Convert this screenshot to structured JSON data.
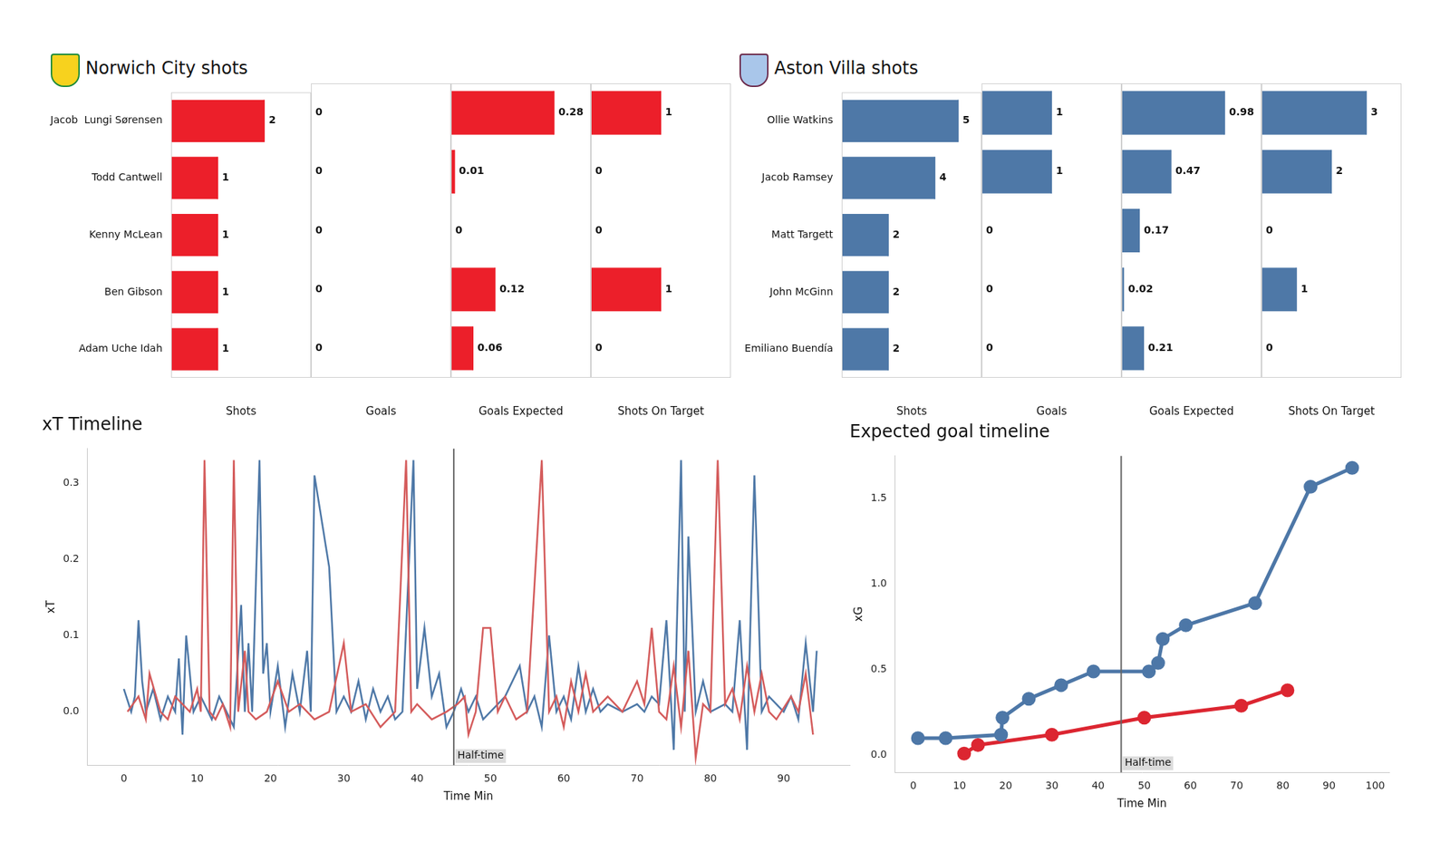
{
  "chart_data": [
    {
      "type": "bar",
      "orientation": "horizontal",
      "title": "Norwich City shots",
      "xlabel": "Shots",
      "categories": [
        "Jacob  Lungi Sørensen",
        "Todd Cantwell",
        "Kenny McLean",
        "Ben Gibson",
        "Adam Uche Idah"
      ],
      "values": [
        2,
        1,
        1,
        1,
        1
      ],
      "color": "#ec1f2a",
      "xlim": [
        0,
        3
      ],
      "data_labels": true,
      "tick_labels": "y",
      "grid": false
    },
    {
      "type": "bar",
      "orientation": "horizontal",
      "xlabel": "Goals",
      "categories": [
        "Jacob  Lungi Sørensen",
        "Todd Cantwell",
        "Kenny McLean",
        "Ben Gibson",
        "Adam Uche Idah"
      ],
      "values": [
        0,
        0,
        0,
        0,
        0
      ],
      "color": "#ec1f2a",
      "xlim": [
        0,
        1
      ],
      "data_labels": true,
      "tick_labels": false,
      "grid": false
    },
    {
      "type": "bar",
      "orientation": "horizontal",
      "xlabel": "Goals Expected",
      "categories": [
        "Jacob  Lungi Sørensen",
        "Todd Cantwell",
        "Kenny McLean",
        "Ben Gibson",
        "Adam Uche Idah"
      ],
      "values": [
        0.28,
        0.01,
        0,
        0.12,
        0.06
      ],
      "color": "#ec1f2a",
      "xlim": [
        0,
        0.38
      ],
      "data_labels": true,
      "tick_labels": false,
      "grid": false
    },
    {
      "type": "bar",
      "orientation": "horizontal",
      "xlabel": "Shots On Target",
      "categories": [
        "Jacob  Lungi Sørensen",
        "Todd Cantwell",
        "Kenny McLean",
        "Ben Gibson",
        "Adam Uche Idah"
      ],
      "values": [
        1,
        0,
        0,
        1,
        0
      ],
      "color": "#ec1f2a",
      "xlim": [
        0,
        2
      ],
      "data_labels": true,
      "tick_labels": false,
      "grid": false
    },
    {
      "type": "bar",
      "orientation": "horizontal",
      "title": "Aston Villa shots",
      "xlabel": "Shots",
      "categories": [
        "Ollie Watkins",
        "Jacob Ramsey",
        "Matt Targett",
        "John McGinn",
        "Emiliano Buendía"
      ],
      "values": [
        5,
        4,
        2,
        2,
        2
      ],
      "color": "#4e78a7",
      "xlim": [
        0,
        6
      ],
      "data_labels": true,
      "tick_labels": "y",
      "grid": false
    },
    {
      "type": "bar",
      "orientation": "horizontal",
      "xlabel": "Goals",
      "categories": [
        "Ollie Watkins",
        "Jacob Ramsey",
        "Matt Targett",
        "John McGinn",
        "Emiliano Buendía"
      ],
      "values": [
        1,
        1,
        0,
        0,
        0
      ],
      "color": "#4e78a7",
      "xlim": [
        0,
        2
      ],
      "data_labels": true,
      "tick_labels": false,
      "grid": false
    },
    {
      "type": "bar",
      "orientation": "horizontal",
      "xlabel": "Goals Expected",
      "categories": [
        "Ollie Watkins",
        "Jacob Ramsey",
        "Matt Targett",
        "John McGinn",
        "Emiliano Buendía"
      ],
      "values": [
        0.98,
        0.47,
        0.17,
        0.02,
        0.21
      ],
      "color": "#4e78a7",
      "xlim": [
        0,
        1.33
      ],
      "data_labels": true,
      "tick_labels": false,
      "grid": false
    },
    {
      "type": "bar",
      "orientation": "horizontal",
      "xlabel": "Shots On Target",
      "categories": [
        "Ollie Watkins",
        "Jacob Ramsey",
        "Matt Targett",
        "John McGinn",
        "Emiliano Buendía"
      ],
      "values": [
        3,
        2,
        0,
        1,
        0
      ],
      "color": "#4e78a7",
      "xlim": [
        0,
        4
      ],
      "data_labels": true,
      "tick_labels": false,
      "grid": false
    },
    {
      "type": "line",
      "title": "xT Timeline",
      "xlabel": "Time Min",
      "ylabel": "xT",
      "grid": false,
      "xlim": [
        -5,
        99
      ],
      "xticks": [
        0,
        10,
        20,
        30,
        40,
        50,
        60,
        70,
        80,
        90
      ],
      "ylim": [
        -0.07,
        0.345
      ],
      "yticks": [
        {
          "value": 0,
          "label": "0.0"
        },
        {
          "value": 0.1,
          "label": "0.1"
        },
        {
          "value": 0.2,
          "label": "0.2"
        },
        {
          "value": 0.3,
          "label": "0.3"
        }
      ],
      "annotations": [
        {
          "x": 45,
          "text": "Half-time"
        }
      ],
      "series": [
        {
          "color": "#d45b5b",
          "x": [
            0.5,
            2,
            3,
            3.5,
            5,
            6,
            7,
            8,
            9,
            10,
            10.5,
            11,
            11.7,
            12.5,
            13.5,
            14.5,
            15,
            15.6,
            16.5,
            17,
            18,
            19.5,
            21,
            22.5,
            24,
            26,
            28,
            30,
            31,
            33,
            35,
            37,
            38.5,
            39.2,
            40,
            42,
            44,
            45.5,
            46.5,
            47,
            48,
            49,
            50,
            51,
            52,
            53.5,
            55,
            57,
            58,
            59,
            60,
            61,
            62,
            63,
            64,
            66,
            68,
            70,
            71,
            72,
            73,
            74,
            75,
            76,
            77,
            78,
            79,
            80,
            81,
            82,
            83,
            84,
            85,
            86,
            87,
            88,
            89,
            91,
            92,
            93,
            94
          ],
          "values": [
            0.0,
            0.02,
            -0.01,
            0.05,
            0.0,
            -0.01,
            0.02,
            0.01,
            0.0,
            0.03,
            0.0,
            0.33,
            0.0,
            -0.01,
            0.01,
            -0.02,
            0.33,
            0.0,
            0.08,
            0.0,
            -0.01,
            0.0,
            0.04,
            0.0,
            0.01,
            -0.01,
            0.0,
            0.09,
            0.0,
            0.01,
            -0.02,
            0.0,
            0.33,
            0.0,
            0.01,
            -0.01,
            0.0,
            0.01,
            0.02,
            -0.03,
            0.0,
            0.11,
            0.11,
            0.0,
            0.02,
            -0.01,
            0.0,
            0.33,
            0.0,
            0.02,
            -0.02,
            0.04,
            0.0,
            0.05,
            0.0,
            0.02,
            0.0,
            0.04,
            0.01,
            0.11,
            0.0,
            -0.01,
            0.06,
            -0.02,
            0.08,
            -0.06,
            0.01,
            0.0,
            0.33,
            0.01,
            0.03,
            -0.01,
            0.06,
            0.0,
            0.05,
            0.0,
            -0.01,
            0.02,
            0.0,
            0.05,
            -0.03
          ]
        },
        {
          "color": "#4e78a7",
          "x": [
            0,
            1,
            1.5,
            2,
            2.5,
            3,
            4,
            5,
            6,
            7,
            7.5,
            8,
            8.5,
            9.5,
            10.5,
            12,
            13,
            14,
            15,
            16,
            16.5,
            17,
            17.5,
            18.5,
            19,
            19.5,
            20,
            21,
            22,
            23,
            24,
            25,
            25.5,
            26,
            28,
            29,
            30,
            31,
            32,
            33,
            34,
            35,
            36,
            37,
            38,
            39.5,
            40,
            41,
            42,
            43,
            44,
            45,
            46,
            47,
            48,
            49,
            50,
            52,
            54,
            55,
            56,
            57,
            58,
            59,
            60,
            61,
            62,
            63,
            64,
            65,
            66,
            68,
            70,
            71,
            72,
            73,
            74,
            75,
            76,
            76.5,
            77,
            78,
            79,
            80,
            82,
            83,
            84,
            85,
            86,
            87,
            88,
            89,
            90,
            91,
            92,
            93,
            94,
            94.5
          ],
          "values": [
            0.03,
            0.0,
            0.02,
            0.12,
            0.04,
            0.0,
            0.03,
            -0.01,
            0.02,
            0.0,
            0.07,
            -0.03,
            0.1,
            0.0,
            0.02,
            -0.01,
            0.02,
            0.0,
            -0.02,
            0.14,
            0.0,
            0.09,
            0.0,
            0.33,
            0.05,
            0.09,
            0.0,
            0.06,
            -0.02,
            0.05,
            0.0,
            0.08,
            0.0,
            0.31,
            0.19,
            0.0,
            0.02,
            0.0,
            0.04,
            -0.01,
            0.03,
            0.0,
            0.02,
            -0.01,
            0.0,
            0.33,
            0.03,
            0.11,
            0.02,
            0.05,
            -0.02,
            0.0,
            0.03,
            0.0,
            0.02,
            -0.01,
            0.0,
            0.02,
            0.06,
            0.0,
            0.02,
            -0.02,
            0.1,
            0.0,
            0.02,
            -0.01,
            0.06,
            0.0,
            0.03,
            0.0,
            0.01,
            0.0,
            0.01,
            0.0,
            0.02,
            0.01,
            0.12,
            -0.05,
            0.33,
            0.0,
            0.23,
            0.0,
            0.04,
            0.0,
            0.01,
            0.0,
            0.12,
            -0.05,
            0.31,
            0.0,
            0.02,
            0.01,
            0.0,
            0.02,
            -0.01,
            0.09,
            0.0,
            0.08
          ]
        }
      ]
    },
    {
      "type": "line",
      "title": "Expected goal timeline",
      "xlabel": "Time Min",
      "ylabel": "xG",
      "grid": false,
      "xlim": [
        -4,
        103
      ],
      "xticks": [
        0,
        10,
        20,
        30,
        40,
        50,
        60,
        70,
        80,
        90,
        100
      ],
      "ylim": [
        -0.1,
        1.75
      ],
      "yticks": [
        {
          "value": 0,
          "label": "0.0"
        },
        {
          "value": 0.5,
          "label": "0.5"
        },
        {
          "value": 1,
          "label": "1.0"
        },
        {
          "value": 1.5,
          "label": "1.5"
        }
      ],
      "annotations": [
        {
          "x": 45,
          "text": "Half-time"
        }
      ],
      "series": [
        {
          "color": "#4d77a7",
          "marker": "o",
          "x": [
            1,
            7,
            19,
            19.3,
            25,
            32,
            39,
            51,
            53,
            54,
            59,
            74,
            86,
            95
          ],
          "values": [
            0.1,
            0.1,
            0.12,
            0.22,
            0.33,
            0.41,
            0.49,
            0.49,
            0.54,
            0.68,
            0.76,
            0.89,
            1.57,
            1.68
          ]
        },
        {
          "color": "#dc2631",
          "marker": "o",
          "x": [
            11,
            14,
            30,
            50,
            71,
            81
          ],
          "values": [
            0.01,
            0.06,
            0.12,
            0.22,
            0.29,
            0.38
          ]
        }
      ]
    }
  ]
}
